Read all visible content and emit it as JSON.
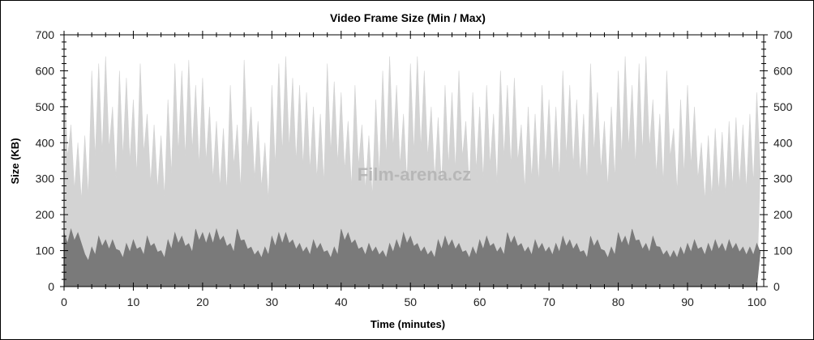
{
  "chart_data": {
    "type": "area",
    "title": "Video Frame Size (Min / Max)",
    "xlabel": "Time (minutes)",
    "ylabel": "Size (KB)",
    "xlim": [
      0,
      101
    ],
    "ylim": [
      0,
      700
    ],
    "xticks": [
      0,
      10,
      20,
      30,
      40,
      50,
      60,
      70,
      80,
      90,
      100
    ],
    "yticks": [
      0,
      100,
      200,
      300,
      400,
      500,
      600,
      700
    ],
    "y_axis_right_mirrored": true,
    "grid": false,
    "watermark": "Film-arena.cz",
    "series": [
      {
        "color": "#d3d3d3",
        "values": [
          600,
          450,
          400,
          420,
          600,
          620,
          640,
          500,
          600,
          580,
          520,
          620,
          480,
          450,
          420,
          520,
          620,
          600,
          630,
          560,
          580,
          500,
          460,
          440,
          560,
          450,
          630,
          500,
          460,
          400,
          560,
          620,
          640,
          580,
          560,
          540,
          500,
          480,
          620,
          570,
          540,
          460,
          560,
          450,
          420,
          520,
          600,
          640,
          560,
          480,
          620,
          640,
          600,
          500,
          470,
          560,
          540,
          600,
          460,
          540,
          500,
          560,
          480,
          600,
          560,
          580,
          450,
          500,
          480,
          560,
          520,
          500,
          600,
          560,
          520,
          480,
          620,
          540,
          460,
          500,
          600,
          640,
          560,
          620,
          640,
          520,
          480,
          600,
          440,
          520,
          560,
          500,
          400,
          420,
          440,
          430,
          460,
          470,
          450,
          480,
          540
        ]
      },
      {
        "color": "#7a7a7a",
        "values": [
          150,
          160,
          150,
          90,
          110,
          140,
          130,
          130,
          100,
          120,
          130,
          110,
          140,
          120,
          100,
          130,
          150,
          140,
          120,
          160,
          150,
          150,
          160,
          140,
          120,
          160,
          130,
          110,
          100,
          110,
          140,
          150,
          150,
          130,
          120,
          110,
          130,
          120,
          100,
          110,
          160,
          150,
          130,
          110,
          120,
          110,
          100,
          120,
          130,
          150,
          140,
          120,
          110,
          100,
          130,
          140,
          130,
          120,
          100,
          110,
          130,
          140,
          120,
          110,
          150,
          140,
          120,
          110,
          130,
          120,
          110,
          120,
          140,
          130,
          120,
          100,
          140,
          130,
          100,
          110,
          150,
          140,
          160,
          130,
          120,
          140,
          110,
          100,
          100,
          110,
          120,
          130,
          110,
          120,
          130,
          120,
          130,
          120,
          110,
          110,
          120
        ]
      }
    ]
  }
}
